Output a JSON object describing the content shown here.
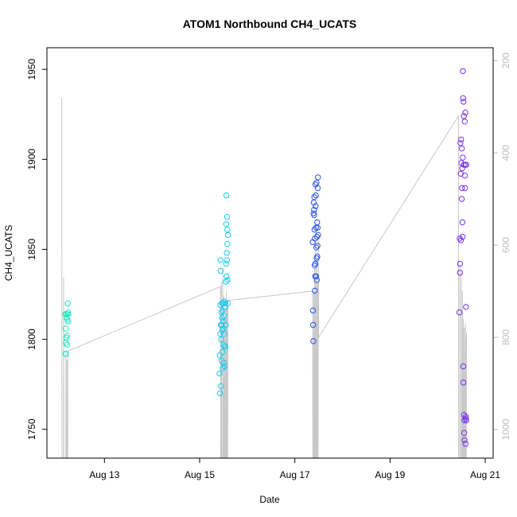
{
  "chart_data": {
    "type": "scatter",
    "title": "ATOM1 Northbound CH4_UCATS",
    "xlabel": "Date",
    "ylabel": "CH4_UCATS",
    "xlim": [
      "2016-08-11T19:00",
      "2016-08-21T04:00"
    ],
    "ylim": [
      1734,
      1962
    ],
    "y2lim": [
      1062,
      172
    ],
    "x_ticks": [
      "Aug 13",
      "Aug 15",
      "Aug 17",
      "Aug 19",
      "Aug 21"
    ],
    "x_tick_values": [
      "2016-08-13T00:00",
      "2016-08-15T00:00",
      "2016-08-17T00:00",
      "2016-08-19T00:00",
      "2016-08-21T00:00"
    ],
    "y_ticks": [
      1750,
      1800,
      1850,
      1900,
      1950
    ],
    "y2_ticks": [
      200,
      400,
      600,
      800,
      1000
    ],
    "grid": false,
    "colors": {
      "line": "#c8c8c8",
      "axis": "#000000",
      "right_axis": "#bdbdbd"
    },
    "series": [
      {
        "color": "#22e8c0",
        "points": [
          [
            "2016-08-12T04:10",
            1814
          ],
          [
            "2016-08-12T04:20",
            1792
          ],
          [
            "2016-08-12T04:25",
            1806
          ],
          [
            "2016-08-12T04:30",
            1798
          ],
          [
            "2016-08-12T04:35",
            1792
          ],
          [
            "2016-08-12T04:45",
            1801
          ],
          [
            "2016-08-12T04:50",
            1812
          ],
          [
            "2016-08-12T05:00",
            1814
          ],
          [
            "2016-08-12T05:10",
            1797
          ],
          [
            "2016-08-12T05:15",
            1802
          ],
          [
            "2016-08-12T05:20",
            1811
          ],
          [
            "2016-08-12T05:30",
            1820
          ],
          [
            "2016-08-12T05:35",
            1814
          ],
          [
            "2016-08-12T05:40",
            1810
          ],
          [
            "2016-08-12T05:45",
            1815
          ]
        ]
      },
      {
        "color": "#1ccaf0",
        "points": [
          [
            "2016-08-15T10:00",
            1781
          ],
          [
            "2016-08-15T10:10",
            1791
          ],
          [
            "2016-08-15T10:15",
            1770
          ],
          [
            "2016-08-15T10:20",
            1803
          ],
          [
            "2016-08-15T10:25",
            1819
          ],
          [
            "2016-08-15T10:30",
            1844
          ],
          [
            "2016-08-15T10:35",
            1838
          ],
          [
            "2016-08-15T10:40",
            1808
          ],
          [
            "2016-08-15T10:45",
            1774
          ],
          [
            "2016-08-15T10:50",
            1800
          ],
          [
            "2016-08-15T11:00",
            1815
          ],
          [
            "2016-08-15T11:05",
            1788
          ],
          [
            "2016-08-15T11:10",
            1808
          ],
          [
            "2016-08-15T11:15",
            1820
          ],
          [
            "2016-08-15T11:20",
            1812
          ],
          [
            "2016-08-15T11:25",
            1805
          ],
          [
            "2016-08-15T11:30",
            1793
          ],
          [
            "2016-08-15T11:35",
            1816
          ],
          [
            "2016-08-15T11:40",
            1784
          ],
          [
            "2016-08-15T11:45",
            1810
          ],
          [
            "2016-08-15T11:50",
            1820
          ],
          [
            "2016-08-15T12:00",
            1806
          ],
          [
            "2016-08-15T12:05",
            1787
          ],
          [
            "2016-08-15T12:10",
            1797
          ],
          [
            "2016-08-15T12:15",
            1813
          ],
          [
            "2016-08-15T12:20",
            1821
          ],
          [
            "2016-08-15T12:25",
            1803
          ],
          [
            "2016-08-15T12:30",
            1785
          ],
          [
            "2016-08-15T12:35",
            1796
          ],
          [
            "2016-08-15T12:40",
            1818
          ],
          [
            "2016-08-15T12:50",
            1820
          ],
          [
            "2016-08-15T13:00",
            1796
          ],
          [
            "2016-08-15T13:10",
            1808
          ],
          [
            "2016-08-15T13:15",
            1832
          ],
          [
            "2016-08-15T13:20",
            1842
          ],
          [
            "2016-08-15T13:25",
            1864
          ],
          [
            "2016-08-15T13:30",
            1880
          ],
          [
            "2016-08-15T13:35",
            1835
          ],
          [
            "2016-08-15T13:40",
            1848
          ],
          [
            "2016-08-15T13:45",
            1844
          ],
          [
            "2016-08-15T13:50",
            1868
          ],
          [
            "2016-08-15T13:55",
            1861
          ],
          [
            "2016-08-15T14:00",
            1853
          ],
          [
            "2016-08-15T14:05",
            1833
          ],
          [
            "2016-08-15T14:10",
            1820
          ],
          [
            "2016-08-15T14:15",
            1858
          ]
        ]
      },
      {
        "color": "#2a56f0",
        "points": [
          [
            "2016-08-17T09:00",
            1854
          ],
          [
            "2016-08-17T09:10",
            1816
          ],
          [
            "2016-08-17T09:15",
            1808
          ],
          [
            "2016-08-17T09:20",
            1799
          ],
          [
            "2016-08-17T09:25",
            1870
          ],
          [
            "2016-08-17T09:30",
            1876
          ],
          [
            "2016-08-17T09:40",
            1872
          ],
          [
            "2016-08-17T09:45",
            1869
          ],
          [
            "2016-08-17T09:50",
            1879
          ],
          [
            "2016-08-17T09:55",
            1861
          ],
          [
            "2016-08-17T10:00",
            1841
          ],
          [
            "2016-08-17T10:05",
            1827
          ],
          [
            "2016-08-17T10:10",
            1856
          ],
          [
            "2016-08-17T10:15",
            1835
          ],
          [
            "2016-08-17T10:20",
            1842
          ],
          [
            "2016-08-17T10:25",
            1886
          ],
          [
            "2016-08-17T10:30",
            1874
          ],
          [
            "2016-08-17T10:35",
            1880
          ],
          [
            "2016-08-17T10:40",
            1862
          ],
          [
            "2016-08-17T10:45",
            1835
          ],
          [
            "2016-08-17T10:50",
            1851
          ],
          [
            "2016-08-17T10:55",
            1887
          ],
          [
            "2016-08-17T11:00",
            1845
          ],
          [
            "2016-08-17T11:05",
            1833
          ],
          [
            "2016-08-17T11:10",
            1857
          ],
          [
            "2016-08-17T11:15",
            1865
          ],
          [
            "2016-08-17T11:20",
            1846
          ],
          [
            "2016-08-17T11:25",
            1852
          ],
          [
            "2016-08-17T11:30",
            1862
          ],
          [
            "2016-08-17T11:35",
            1884
          ],
          [
            "2016-08-17T11:40",
            1890
          ],
          [
            "2016-08-17T11:45",
            1858
          ]
        ]
      },
      {
        "color": "#7a32f0",
        "points": [
          [
            "2016-08-20T11:00",
            1815
          ],
          [
            "2016-08-20T11:10",
            1856
          ],
          [
            "2016-08-20T11:15",
            1837
          ],
          [
            "2016-08-20T11:20",
            1842
          ],
          [
            "2016-08-20T11:30",
            1909
          ],
          [
            "2016-08-20T11:40",
            1892
          ],
          [
            "2016-08-20T11:45",
            1855
          ],
          [
            "2016-08-20T11:50",
            1911
          ],
          [
            "2016-08-20T12:00",
            1898
          ],
          [
            "2016-08-20T12:10",
            1878
          ],
          [
            "2016-08-20T12:15",
            1906
          ],
          [
            "2016-08-20T12:20",
            1884
          ],
          [
            "2016-08-20T12:25",
            1895
          ],
          [
            "2016-08-20T12:30",
            1865
          ],
          [
            "2016-08-20T12:35",
            1857
          ],
          [
            "2016-08-20T12:40",
            1901
          ],
          [
            "2016-08-20T12:45",
            1949
          ],
          [
            "2016-08-20T12:50",
            1934
          ],
          [
            "2016-08-20T12:55",
            1785
          ],
          [
            "2016-08-20T13:00",
            1776
          ],
          [
            "2016-08-20T13:05",
            1932
          ],
          [
            "2016-08-20T13:10",
            1897
          ],
          [
            "2016-08-20T13:15",
            1924
          ],
          [
            "2016-08-20T13:20",
            1758
          ],
          [
            "2016-08-20T13:25",
            1748
          ],
          [
            "2016-08-20T13:30",
            1755
          ],
          [
            "2016-08-20T13:35",
            1744
          ],
          [
            "2016-08-20T13:40",
            1921
          ],
          [
            "2016-08-20T13:45",
            1891
          ],
          [
            "2016-08-20T13:50",
            1884
          ],
          [
            "2016-08-20T13:55",
            1897
          ],
          [
            "2016-08-20T14:00",
            1926
          ],
          [
            "2016-08-20T14:05",
            1742
          ],
          [
            "2016-08-20T14:10",
            1756
          ],
          [
            "2016-08-20T14:15",
            1757
          ],
          [
            "2016-08-20T14:20",
            1818
          ],
          [
            "2016-08-20T14:25",
            1897
          ],
          [
            "2016-08-20T14:30",
            1755
          ]
        ]
      }
    ],
    "altitude_trace": [
      [
        "2016-08-12T02:30",
        280
      ],
      [
        "2016-08-12T02:35",
        1062
      ],
      [
        "2016-08-12T03:20",
        1062
      ],
      [
        "2016-08-12T03:25",
        670
      ],
      [
        "2016-08-12T03:30",
        1062
      ],
      [
        "2016-08-12T04:30",
        1062
      ],
      [
        "2016-08-12T04:35",
        830
      ],
      [
        "2016-08-12T04:40",
        1062
      ],
      [
        "2016-08-12T05:00",
        1062
      ],
      [
        "2016-08-12T05:05",
        850
      ],
      [
        "2016-08-12T05:10",
        1062
      ],
      [
        "2016-08-12T05:30",
        1062
      ],
      [
        "2016-08-12T05:35",
        830
      ],
      [
        "2016-08-15T10:30",
        690
      ],
      [
        "2016-08-15T10:35",
        1062
      ],
      [
        "2016-08-15T10:55",
        1062
      ],
      [
        "2016-08-15T11:00",
        680
      ],
      [
        "2016-08-15T11:05",
        1062
      ],
      [
        "2016-08-15T11:35",
        1062
      ],
      [
        "2016-08-15T11:40",
        650
      ],
      [
        "2016-08-15T11:45",
        1062
      ],
      [
        "2016-08-15T12:05",
        1062
      ],
      [
        "2016-08-15T12:10",
        710
      ],
      [
        "2016-08-15T12:15",
        1062
      ],
      [
        "2016-08-15T12:35",
        1062
      ],
      [
        "2016-08-15T12:40",
        760
      ],
      [
        "2016-08-15T12:45",
        1062
      ],
      [
        "2016-08-15T13:05",
        1062
      ],
      [
        "2016-08-15T13:10",
        740
      ],
      [
        "2016-08-15T13:15",
        1062
      ],
      [
        "2016-08-15T13:25",
        1062
      ],
      [
        "2016-08-15T13:30",
        700
      ],
      [
        "2016-08-15T13:35",
        1062
      ],
      [
        "2016-08-15T13:45",
        1062
      ],
      [
        "2016-08-15T13:50",
        720
      ],
      [
        "2016-08-15T13:55",
        1062
      ],
      [
        "2016-08-15T14:10",
        1062
      ],
      [
        "2016-08-15T14:15",
        720
      ],
      [
        "2016-08-17T09:00",
        700
      ],
      [
        "2016-08-17T09:05",
        1062
      ],
      [
        "2016-08-17T09:25",
        1062
      ],
      [
        "2016-08-17T09:30",
        700
      ],
      [
        "2016-08-17T09:35",
        1062
      ],
      [
        "2016-08-17T09:55",
        1062
      ],
      [
        "2016-08-17T10:00",
        650
      ],
      [
        "2016-08-17T10:05",
        1062
      ],
      [
        "2016-08-17T10:25",
        1062
      ],
      [
        "2016-08-17T10:30",
        600
      ],
      [
        "2016-08-17T10:35",
        1062
      ],
      [
        "2016-08-17T10:55",
        1062
      ],
      [
        "2016-08-17T11:00",
        630
      ],
      [
        "2016-08-17T11:05",
        1062
      ],
      [
        "2016-08-17T11:20",
        1062
      ],
      [
        "2016-08-17T11:25",
        680
      ],
      [
        "2016-08-17T11:30",
        1062
      ],
      [
        "2016-08-17T11:45",
        1062
      ],
      [
        "2016-08-17T11:50",
        580
      ],
      [
        "2016-08-17T12:00",
        800
      ],
      [
        "2016-08-20T10:30",
        320
      ],
      [
        "2016-08-20T10:35",
        1062
      ],
      [
        "2016-08-20T11:10",
        1062
      ],
      [
        "2016-08-20T11:15",
        640
      ],
      [
        "2016-08-20T11:20",
        1062
      ],
      [
        "2016-08-20T11:50",
        1062
      ],
      [
        "2016-08-20T11:55",
        660
      ],
      [
        "2016-08-20T12:00",
        1062
      ],
      [
        "2016-08-20T12:25",
        1062
      ],
      [
        "2016-08-20T12:30",
        700
      ],
      [
        "2016-08-20T12:35",
        1062
      ],
      [
        "2016-08-20T12:55",
        1062
      ],
      [
        "2016-08-20T13:00",
        760
      ],
      [
        "2016-08-20T13:05",
        1062
      ],
      [
        "2016-08-20T13:25",
        1062
      ],
      [
        "2016-08-20T13:30",
        780
      ],
      [
        "2016-08-20T13:35",
        1062
      ],
      [
        "2016-08-20T13:55",
        1062
      ],
      [
        "2016-08-20T14:00",
        770
      ],
      [
        "2016-08-20T14:05",
        1062
      ],
      [
        "2016-08-20T14:15",
        1062
      ],
      [
        "2016-08-20T14:20",
        800
      ],
      [
        "2016-08-20T14:25",
        1062
      ],
      [
        "2016-08-20T14:30",
        1062
      ],
      [
        "2016-08-20T14:35",
        790
      ]
    ]
  }
}
